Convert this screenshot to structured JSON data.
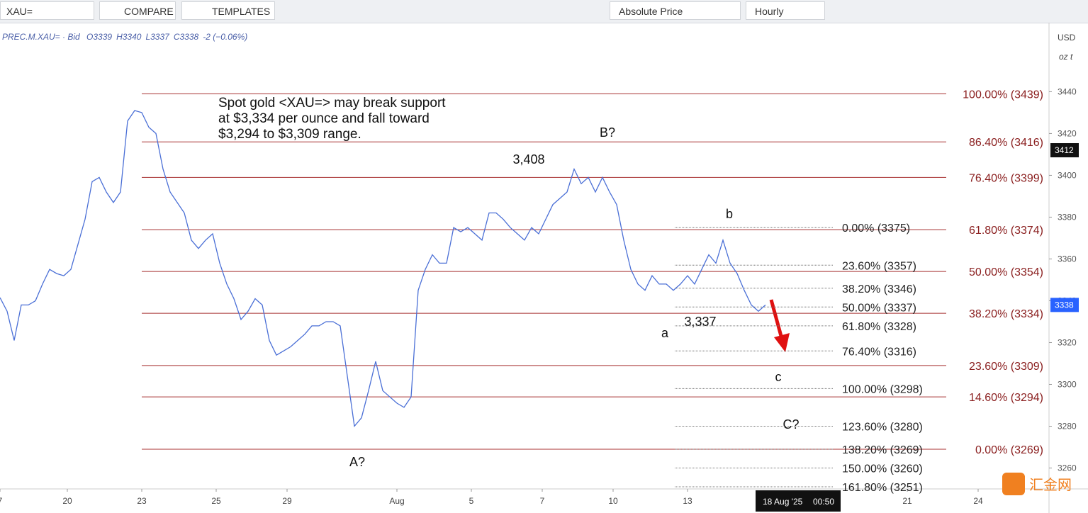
{
  "toolbar": {
    "symbol": "XAU=",
    "compare": "COMPARE",
    "templates": "TEMPLATES",
    "price_mode": "Absolute Price",
    "interval": "Hourly"
  },
  "legend": {
    "symbol": "PREC.M.XAU= · Bid",
    "open": "O3339",
    "high": "H3340",
    "low": "L3337",
    "close": "C3338",
    "change": "-2 (−0.06%)"
  },
  "chart_data": {
    "type": "line",
    "x": [
      0,
      2,
      4,
      6,
      8,
      10,
      12,
      14,
      16,
      18,
      20,
      22,
      24,
      26,
      28,
      30,
      32,
      34,
      36,
      38,
      40,
      42,
      44,
      46,
      48,
      50,
      52,
      54,
      56,
      58,
      60,
      62,
      64,
      66,
      68,
      70,
      72,
      74,
      76,
      78,
      80,
      82,
      84,
      86,
      88,
      90,
      92,
      94,
      96,
      98,
      100,
      102,
      104,
      106,
      108,
      110,
      112,
      114,
      116,
      118,
      120,
      122,
      124,
      126,
      128,
      130,
      132,
      134,
      136,
      138,
      140,
      142,
      144,
      146,
      148,
      150,
      152,
      154,
      156,
      158,
      160,
      162,
      164,
      166,
      168,
      170,
      172,
      174,
      176,
      178,
      180,
      182,
      184,
      186,
      188,
      190,
      192,
      194,
      196,
      198,
      200,
      202,
      204,
      206,
      208,
      210,
      212,
      214,
      216
    ],
    "values": [
      3341.5,
      3335,
      3321,
      3338,
      3338,
      3340,
      3348,
      3355,
      3353,
      3352,
      3355,
      3367,
      3379,
      3397,
      3399,
      3392,
      3387,
      3392,
      3426,
      3431,
      3430,
      3423,
      3420,
      3403,
      3392,
      3387,
      3382,
      3369,
      3365,
      3369,
      3372,
      3358,
      3348,
      3341,
      3331,
      3335,
      3341,
      3338,
      3321,
      3314,
      3316,
      3318,
      3321,
      3324,
      3328,
      3328,
      3330,
      3330,
      3328,
      3304,
      3280,
      3284,
      3297,
      3311,
      3297,
      3294,
      3291,
      3289,
      3294,
      3345,
      3355,
      3362,
      3358,
      3358,
      3375,
      3373,
      3375,
      3372,
      3369,
      3382,
      3382,
      3379,
      3375,
      3372,
      3369,
      3375,
      3372,
      3379,
      3386,
      3389,
      3392,
      3403,
      3396,
      3399,
      3392,
      3399,
      3392,
      3386,
      3369,
      3355,
      3348,
      3345,
      3352,
      3348,
      3348,
      3345,
      3348,
      3352,
      3348,
      3355,
      3362,
      3358,
      3369,
      3358,
      3353,
      3345,
      3338,
      3335,
      3338
    ],
    "color": "#4a6fd6",
    "xlim": [
      0,
      296
    ],
    "xticks": [
      {
        "value": 0,
        "label": "7"
      },
      {
        "value": 19,
        "label": "20"
      },
      {
        "value": 40,
        "label": "23"
      },
      {
        "value": 61,
        "label": "25"
      },
      {
        "value": 81,
        "label": "29"
      },
      {
        "value": 112,
        "label": "Aug"
      },
      {
        "value": 133,
        "label": "5"
      },
      {
        "value": 153,
        "label": "7"
      },
      {
        "value": 173,
        "label": "10"
      },
      {
        "value": 194,
        "label": "13"
      },
      {
        "value": 256,
        "label": "21"
      },
      {
        "value": 276,
        "label": "24"
      }
    ],
    "ylim": [
      3250,
      3472
    ],
    "yticks": [
      3260,
      3280,
      3300,
      3320,
      3340,
      3360,
      3380,
      3400,
      3420,
      3440
    ],
    "grid": false,
    "currency": "USD",
    "unit": "oz t",
    "crosshair": {
      "price": 3412,
      "date": "18 Aug '25",
      "time": "00:50"
    },
    "last_price": 3338,
    "fib_levels": [
      {
        "value": 3439,
        "label": "100.00% (3439)"
      },
      {
        "value": 3416,
        "label": "86.40% (3416)"
      },
      {
        "value": 3399,
        "label": "76.40% (3399)"
      },
      {
        "value": 3374,
        "label": "61.80% (3374)"
      },
      {
        "value": 3354,
        "label": "50.00% (3354)"
      },
      {
        "value": 3334,
        "label": "38.20% (3334)"
      },
      {
        "value": 3309,
        "label": "23.60% (3309)"
      },
      {
        "value": 3294,
        "label": "14.60% (3294)"
      },
      {
        "value": 3269,
        "label": "0.00% (3269)"
      }
    ],
    "fib_extension": [
      {
        "value": 3375,
        "label": "0.00% (3375)"
      },
      {
        "value": 3357,
        "label": "23.60% (3357)"
      },
      {
        "value": 3346,
        "label": "38.20% (3346)"
      },
      {
        "value": 3337,
        "label": "50.00% (3337)"
      },
      {
        "value": 3328,
        "label": "61.80% (3328)"
      },
      {
        "value": 3316,
        "label": "76.40% (3316)"
      },
      {
        "value": 3298,
        "label": "100.00% (3298)"
      },
      {
        "value": 3280,
        "label": "123.60% (3280)"
      },
      {
        "value": 3269,
        "label": "138.20% (3269)"
      },
      {
        "value": 3260,
        "label": "150.00% (3260)"
      },
      {
        "value": 3251,
        "label": "161.80% (3251)"
      }
    ],
    "note": [
      "Spot gold <XAU=> may break support",
      "at $3,334 per ounce and fall toward",
      "$3,294 to $3,309 range."
    ],
    "annotations": {
      "peak": "3,408",
      "b_upper": "B?",
      "b_lower": "b",
      "a_lower": "a",
      "trough": "3,337",
      "c_lower": "c",
      "c_upper": "C?",
      "a_upper": "A?"
    },
    "watermark": "汇金网"
  }
}
